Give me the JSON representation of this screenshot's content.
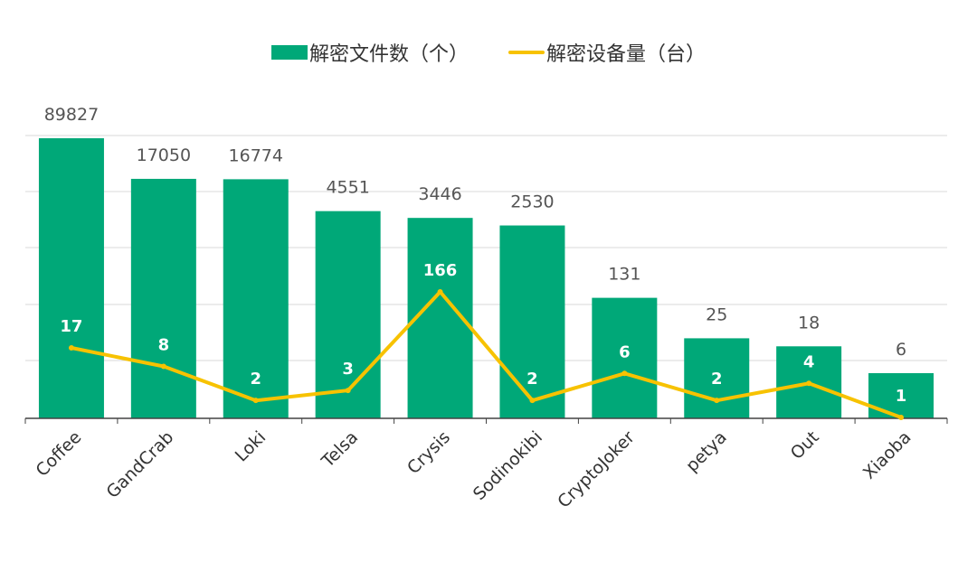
{
  "legend": {
    "bar_series": "解密文件数（个）",
    "line_series": "解密设备量（台）"
  },
  "colors": {
    "bar": "#00a878",
    "line": "#f7c200",
    "grid": "#d9d9d9",
    "axis": "#444444"
  },
  "chart_data": {
    "type": "bar",
    "categories": [
      "Coffee",
      "GandCrab",
      "Loki",
      "Telsa",
      "Crysis",
      "Sodinokibi",
      "CryptoJoker",
      "petya",
      "Out",
      "Xiaoba"
    ],
    "series": [
      {
        "name": "解密文件数（个）",
        "type": "bar",
        "values": [
          89827,
          17050,
          16774,
          4551,
          3446,
          2530,
          131,
          25,
          18,
          6
        ],
        "scale": "log"
      },
      {
        "name": "解密设备量（台）",
        "type": "line",
        "values": [
          17,
          8,
          2,
          3,
          166,
          2,
          6,
          2,
          4,
          1
        ],
        "scale": "log"
      }
    ],
    "xlabel": "",
    "ylabel": "",
    "grid": true,
    "legend_position": "top-center"
  }
}
